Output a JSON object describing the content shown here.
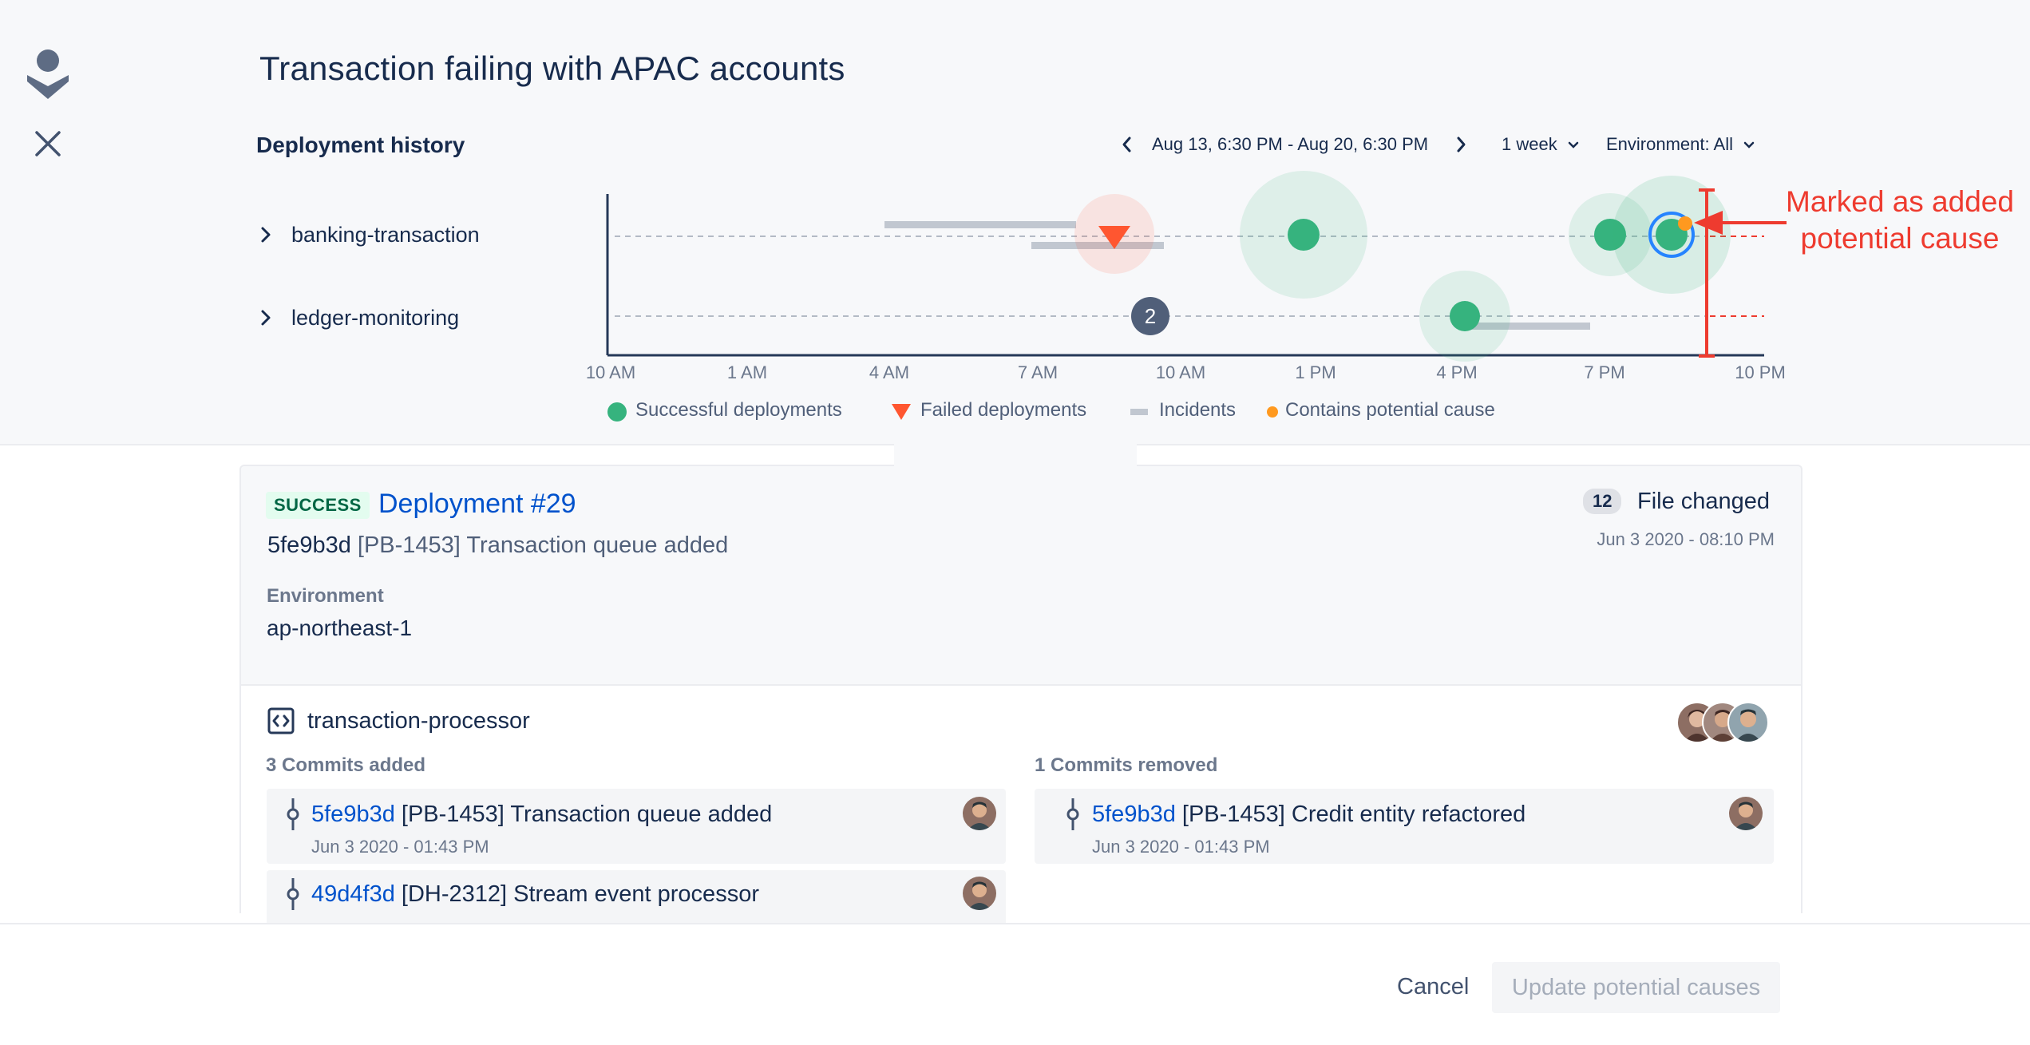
{
  "page": {
    "title": "Transaction failing with APAC accounts"
  },
  "deployment_history": {
    "section_title": "Deployment history",
    "date_range": "Aug 13, 6:30 PM - Aug 20, 6:30 PM",
    "period": "1 week",
    "environment": "Environment: All"
  },
  "timeline": {
    "rows": [
      {
        "label": "banking-transaction"
      },
      {
        "label": "ledger-monitoring"
      }
    ],
    "ticks": [
      "10 AM",
      "1 AM",
      "4 AM",
      "7 AM",
      "10 AM",
      "1 PM",
      "4 PM",
      "7 PM",
      "10 PM"
    ],
    "cluster_count": "2",
    "legend": {
      "success": "Successful deployments",
      "failed": "Failed deployments",
      "incidents": "Incidents",
      "potential": "Contains potential cause"
    },
    "colors": {
      "success": "#36B37E",
      "failed": "#FF5630",
      "incident": "#C1C7D0",
      "potential": "#FF991F",
      "marker": "#EE3B2F",
      "selected_ring": "#2684FF"
    }
  },
  "annotation": {
    "line1": "Marked as added",
    "line2": "potential cause"
  },
  "deployment": {
    "status": "SUCCESS",
    "title": "Deployment #29",
    "commit_hash": "5fe9b3d",
    "commit_message": "[PB-1453] Transaction queue added",
    "environment_label": "Environment",
    "environment_value": "ap-northeast-1",
    "files_count": "12",
    "files_label": "File changed",
    "date": "Jun 3 2020 - 08:10 PM"
  },
  "repository": {
    "name": "transaction-processor",
    "commits_added_label": "3 Commits added",
    "commits_removed_label": "1 Commits removed",
    "commits_added": [
      {
        "hash": "5fe9b3d",
        "message": "[PB-1453] Transaction queue added",
        "date": "Jun 3 2020 - 01:43 PM"
      },
      {
        "hash": "49d4f3d",
        "message": "[DH-2312] Stream event processor",
        "date": ""
      }
    ],
    "commits_removed": [
      {
        "hash": "5fe9b3d",
        "message": "[PB-1453] Credit entity refactored",
        "date": "Jun 3 2020 - 01:43 PM"
      }
    ]
  },
  "footer": {
    "cancel": "Cancel",
    "update": "Update potential causes"
  }
}
